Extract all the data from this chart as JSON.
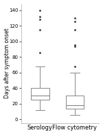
{
  "categories": [
    "Serology",
    "Flow cytometry"
  ],
  "box_stats": [
    {
      "med": 30,
      "q1": 25,
      "q3": 40,
      "whislo": 12,
      "whishi": 68,
      "fliers": [
        85,
        115,
        128,
        132,
        140
      ]
    },
    {
      "med": 18,
      "q1": 13,
      "q3": 30,
      "whislo": 5,
      "whishi": 60,
      "fliers": [
        68,
        93,
        95,
        115,
        125,
        130
      ]
    }
  ],
  "ylabel": "Days after symptom onset",
  "ylim": [
    -5,
    148
  ],
  "yticks": [
    0,
    20,
    40,
    60,
    80,
    100,
    120,
    140
  ],
  "box_color": "#ffffff",
  "box_edge_color": "#888888",
  "median_color": "#888888",
  "whisker_color": "#888888",
  "cap_color": "#888888",
  "flier_color": "#444444",
  "ylabel_fontsize": 5.5,
  "tick_fontsize": 5.0,
  "label_fontsize": 6.0,
  "background_color": "#ffffff"
}
